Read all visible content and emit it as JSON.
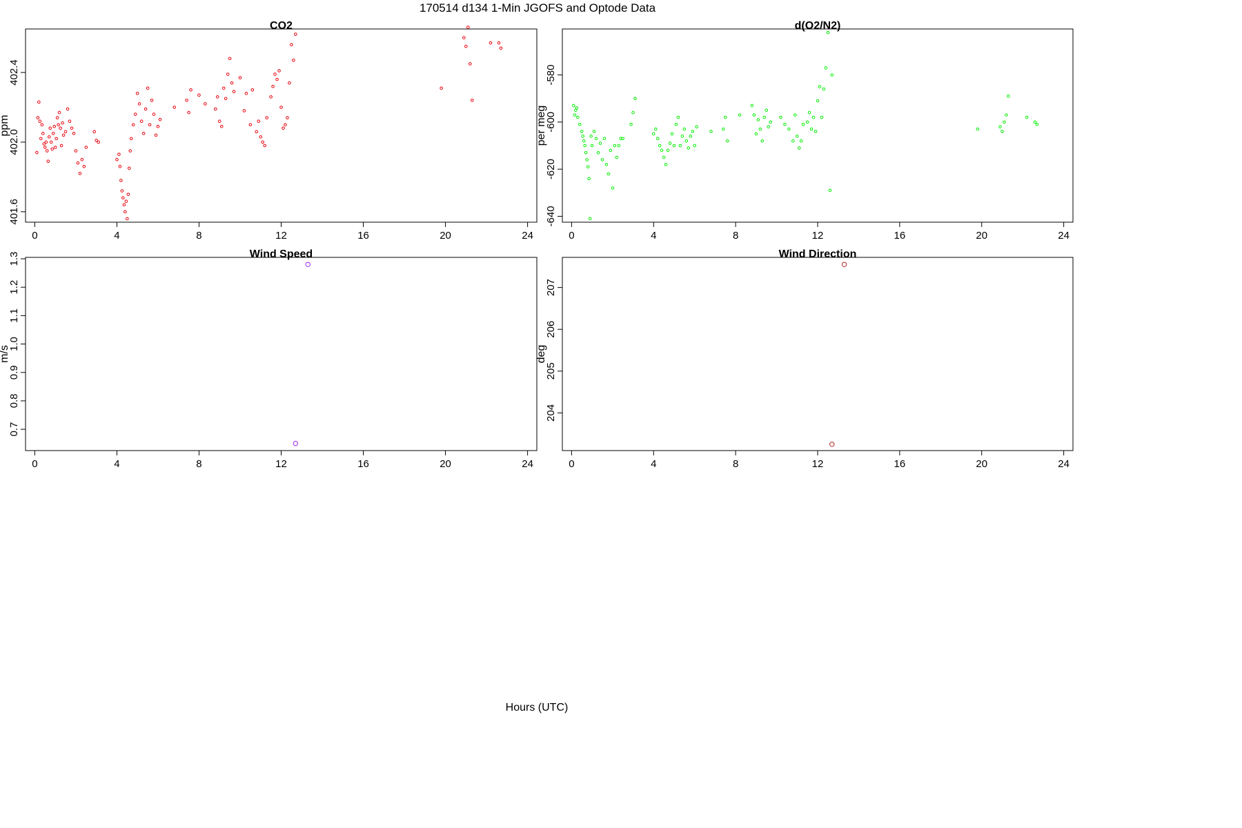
{
  "figure": {
    "title": "170514   d134   1-Min  JGOFS and Optode Data",
    "xlabel": "Hours (UTC)"
  },
  "chart_data": [
    {
      "type": "scatter",
      "title": "CO2",
      "ylabel": "ppm",
      "xlim": [
        -0.45,
        24.45
      ],
      "ylim": [
        401.54,
        402.65
      ],
      "xticks": [
        "0",
        "4",
        "8",
        "12",
        "16",
        "20",
        "24"
      ],
      "yticks": [
        "401.6",
        "402.0",
        "402.4"
      ],
      "marker_color": "#e8000b",
      "series": [
        {
          "x": [
            0.1,
            0.15,
            0.2,
            0.25,
            0.3,
            0.35,
            0.4,
            0.45,
            0.5,
            0.55,
            0.6,
            0.65,
            0.7,
            0.75,
            0.8,
            0.85,
            0.9,
            0.95,
            1.0,
            1.05,
            1.1,
            1.15,
            1.2,
            1.25,
            1.3,
            1.35,
            1.4,
            1.5,
            1.6,
            1.7,
            1.8,
            1.9,
            2.0,
            2.1,
            2.2,
            2.3,
            2.4,
            2.5,
            2.9,
            3.0,
            3.1,
            4.0,
            4.1,
            4.15,
            4.2,
            4.25,
            4.3,
            4.35,
            4.4,
            4.45,
            4.5,
            4.55,
            4.6,
            4.65,
            4.7,
            4.8,
            4.9,
            5.0,
            5.1,
            5.2,
            5.3,
            5.4,
            5.5,
            5.6,
            5.7,
            5.8,
            5.9,
            6.0,
            6.1,
            6.8,
            7.4,
            7.5,
            7.6,
            8.0,
            8.3,
            8.8,
            8.9,
            9.0,
            9.1,
            9.2,
            9.3,
            9.4,
            9.5,
            9.6,
            9.7,
            10.0,
            10.2,
            10.3,
            10.5,
            10.6,
            10.8,
            10.9,
            11.0,
            11.1,
            11.2,
            11.3,
            11.5,
            11.6,
            11.7,
            11.8,
            11.9,
            12.0,
            12.1,
            12.2,
            12.3,
            12.4,
            12.5,
            12.6,
            12.7,
            19.8,
            20.9,
            21.0,
            21.1,
            21.2,
            21.3,
            22.2,
            22.6,
            22.7
          ],
          "y": [
            401.94,
            402.14,
            402.23,
            402.12,
            402.02,
            402.1,
            402.05,
            401.99,
            401.97,
            402.0,
            401.95,
            401.89,
            402.03,
            402.08,
            402.0,
            401.96,
            402.05,
            402.09,
            401.97,
            402.02,
            402.14,
            402.1,
            402.17,
            402.08,
            401.98,
            402.11,
            402.04,
            402.06,
            402.19,
            402.12,
            402.08,
            402.05,
            401.95,
            401.88,
            401.82,
            401.9,
            401.86,
            401.97,
            402.06,
            402.01,
            402.0,
            401.9,
            401.93,
            401.86,
            401.78,
            401.72,
            401.68,
            401.64,
            401.6,
            401.66,
            401.56,
            401.7,
            401.85,
            401.95,
            402.02,
            402.1,
            402.16,
            402.28,
            402.22,
            402.12,
            402.05,
            402.19,
            402.31,
            402.1,
            402.24,
            402.16,
            402.04,
            402.09,
            402.13,
            402.2,
            402.24,
            402.17,
            402.3,
            402.27,
            402.22,
            402.19,
            402.26,
            402.12,
            402.09,
            402.31,
            402.25,
            402.39,
            402.48,
            402.34,
            402.29,
            402.37,
            402.18,
            402.28,
            402.1,
            402.3,
            402.06,
            402.12,
            402.03,
            402.0,
            401.98,
            402.14,
            402.26,
            402.32,
            402.39,
            402.36,
            402.41,
            402.2,
            402.08,
            402.1,
            402.14,
            402.34,
            402.56,
            402.47,
            402.62,
            402.31,
            402.6,
            402.55,
            402.66,
            402.45,
            402.24,
            402.57,
            402.57,
            402.54
          ]
        }
      ]
    },
    {
      "type": "scatter",
      "title": "d(O2/N2)",
      "ylabel": "per meg",
      "xlim": [
        -0.45,
        24.45
      ],
      "ylim": [
        -642.5,
        -560.5
      ],
      "xticks": [
        "0",
        "4",
        "8",
        "12",
        "16",
        "20",
        "24"
      ],
      "yticks": [
        "-640",
        "-620",
        "-600",
        "-580"
      ],
      "marker_color": "#00ee00",
      "series": [
        {
          "x": [
            0.1,
            0.15,
            0.2,
            0.25,
            0.3,
            0.4,
            0.5,
            0.55,
            0.6,
            0.65,
            0.7,
            0.75,
            0.8,
            0.85,
            0.9,
            0.95,
            1.0,
            1.1,
            1.2,
            1.3,
            1.4,
            1.5,
            1.6,
            1.7,
            1.8,
            1.9,
            2.0,
            2.1,
            2.2,
            2.3,
            2.4,
            2.5,
            2.9,
            3.0,
            3.1,
            4.0,
            4.1,
            4.2,
            4.3,
            4.4,
            4.5,
            4.6,
            4.7,
            4.8,
            4.9,
            5.0,
            5.1,
            5.2,
            5.3,
            5.4,
            5.5,
            5.6,
            5.7,
            5.8,
            5.9,
            6.0,
            6.1,
            6.8,
            7.4,
            7.5,
            7.6,
            8.2,
            8.8,
            8.9,
            9.0,
            9.1,
            9.2,
            9.3,
            9.4,
            9.5,
            9.6,
            9.7,
            10.2,
            10.4,
            10.6,
            10.8,
            10.9,
            11.0,
            11.1,
            11.2,
            11.3,
            11.5,
            11.6,
            11.7,
            11.8,
            11.9,
            12.0,
            12.1,
            12.2,
            12.3,
            12.4,
            12.5,
            12.6,
            12.7,
            19.8,
            20.9,
            21.0,
            21.1,
            21.2,
            21.3,
            22.2,
            22.6,
            22.7
          ],
          "y": [
            -593,
            -597,
            -595,
            -594,
            -598,
            -601,
            -604,
            -606,
            -608,
            -610,
            -613,
            -616,
            -619,
            -624,
            -641,
            -606,
            -610,
            -604,
            -607,
            -613,
            -609,
            -616,
            -607,
            -618,
            -622,
            -612,
            -628,
            -610,
            -615,
            -610,
            -607,
            -607,
            -601,
            -596,
            -590,
            -605,
            -603,
            -607,
            -610,
            -612,
            -615,
            -618,
            -612,
            -609,
            -605,
            -610,
            -601,
            -598,
            -610,
            -606,
            -603,
            -608,
            -611,
            -606,
            -604,
            -610,
            -602,
            -604,
            -603,
            -598,
            -608,
            -597,
            -593,
            -597,
            -605,
            -599,
            -603,
            -608,
            -598,
            -595,
            -602,
            -600,
            -598,
            -601,
            -603,
            -608,
            -597,
            -606,
            -611,
            -608,
            -601,
            -600,
            -596,
            -603,
            -598,
            -604,
            -591,
            -585,
            -598,
            -586,
            -577,
            -562,
            -629,
            -580,
            -603,
            -602,
            -604,
            -600,
            -597,
            -589,
            -598,
            -600,
            -601
          ]
        }
      ]
    },
    {
      "type": "scatter",
      "title": "Wind Speed",
      "ylabel": "m/s",
      "xlim": [
        -0.45,
        24.45
      ],
      "ylim": [
        0.625,
        1.305
      ],
      "xticks": [
        "0",
        "4",
        "8",
        "12",
        "16",
        "20",
        "24"
      ],
      "yticks": [
        "0.7",
        "0.8",
        "0.9",
        "1.0",
        "1.1",
        "1.2",
        "1.3"
      ],
      "marker_color": "#a020f0",
      "series": [
        {
          "x": [
            12.7,
            13.3
          ],
          "y": [
            0.65,
            1.28
          ]
        }
      ]
    },
    {
      "type": "scatter",
      "title": "Wind Direction",
      "ylabel": "deg",
      "xlim": [
        -0.45,
        24.45
      ],
      "ylim": [
        203.1,
        207.72
      ],
      "xticks": [
        "0",
        "4",
        "8",
        "12",
        "16",
        "20",
        "24"
      ],
      "yticks": [
        "204",
        "205",
        "206",
        "207"
      ],
      "marker_color": "#b22222",
      "series": [
        {
          "x": [
            12.7,
            13.3
          ],
          "y": [
            203.25,
            207.55
          ]
        }
      ]
    }
  ]
}
